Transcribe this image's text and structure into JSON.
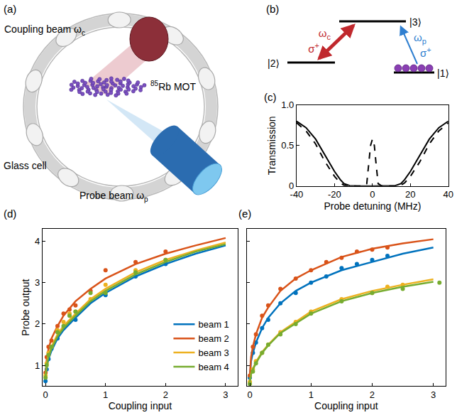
{
  "figure_a": {
    "label": "(a)",
    "coupling_beam": {
      "text": "Coupling beam ω",
      "sub": "c"
    },
    "mot": {
      "pre_sup": "85",
      "text": "Rb MOT"
    },
    "glass_cell": "Glass cell",
    "probe_beam": {
      "text": "Probe beam ω",
      "sub": "p"
    }
  },
  "figure_b": {
    "label": "(b)",
    "levels": [
      "|1⟩",
      "|2⟩",
      "|3⟩"
    ],
    "coupling": {
      "frequency": {
        "text": "ω",
        "sub": "c"
      },
      "polarization": {
        "text": "σ",
        "sup": "+"
      }
    },
    "probe": {
      "frequency": {
        "text": "ω",
        "sub": "p"
      },
      "polarization": {
        "text": "σ",
        "sup": "+"
      }
    }
  },
  "chart_data": [
    {
      "type": "line",
      "label": "(c)",
      "x_label": "Probe detuning (MHz)",
      "y_label": "Transmission",
      "xlim": [
        -40,
        40
      ],
      "ylim": [
        0,
        1
      ],
      "xticks": [
        -40,
        -20,
        0,
        20,
        40
      ],
      "yticks": [
        0,
        0.5,
        {
          "value": 1,
          "label": "1.0"
        }
      ],
      "grid": false,
      "series": [
        {
          "color": "#000000",
          "line_style": "solid",
          "x": [
            -40,
            -35,
            -30,
            -25,
            -20,
            -17,
            -15,
            -12,
            -8,
            0,
            8,
            12,
            15,
            17,
            20,
            25,
            30,
            35,
            40
          ],
          "values": [
            0.8,
            0.72,
            0.58,
            0.38,
            0.18,
            0.08,
            0.03,
            0.005,
            0,
            0,
            0,
            0.005,
            0.03,
            0.08,
            0.18,
            0.38,
            0.58,
            0.72,
            0.8
          ]
        },
        {
          "color": "#000000",
          "line_style": "dashed",
          "x": [
            -40,
            -35,
            -30,
            -25,
            -20,
            -17,
            -15,
            -12,
            -8,
            -5,
            -3,
            -2,
            -1,
            0,
            1,
            2,
            3,
            5,
            8,
            12,
            15,
            17,
            20,
            25,
            30,
            35,
            40
          ],
          "values": [
            0.78,
            0.68,
            0.52,
            0.3,
            0.12,
            0.04,
            0.01,
            0,
            0,
            0,
            0.03,
            0.25,
            0.5,
            0.58,
            0.5,
            0.25,
            0.03,
            0,
            0,
            0,
            0.01,
            0.04,
            0.12,
            0.3,
            0.52,
            0.68,
            0.78
          ]
        }
      ]
    },
    {
      "type": "scatter",
      "label": "(d)",
      "x_label": "Coupling input",
      "y_label": "Probe output",
      "xlim": [
        -0.05,
        3.2
      ],
      "ylim": [
        0.5,
        4.3
      ],
      "xticks": [
        0,
        1,
        2,
        3
      ],
      "yticks": [
        1,
        2,
        3,
        4
      ],
      "grid": false,
      "legend": "lower right",
      "marker": "circle",
      "series": [
        {
          "name": "beam 1",
          "color": "#0072BD",
          "x": [
            0,
            0.02,
            0.05,
            0.1,
            0.2,
            0.3,
            0.4,
            0.5,
            0.75,
            1.0,
            1.5,
            2.0
          ],
          "values": [
            0.62,
            0.9,
            1.15,
            1.4,
            1.65,
            1.9,
            2.05,
            2.1,
            2.55,
            2.7,
            3.15,
            3.45
          ],
          "fit": {
            "x": [
              0,
              0.02,
              0.05,
              0.1,
              0.2,
              0.3,
              0.5,
              0.75,
              1,
              1.5,
              2,
              2.5,
              3
            ],
            "values": [
              0.65,
              0.95,
              1.15,
              1.35,
              1.65,
              1.85,
              2.15,
              2.5,
              2.75,
              3.15,
              3.45,
              3.7,
              3.9
            ]
          }
        },
        {
          "name": "beam 2",
          "color": "#D95319",
          "x": [
            0,
            0.02,
            0.05,
            0.1,
            0.2,
            0.3,
            0.4,
            0.5,
            0.75,
            1.0,
            1.5,
            2.0
          ],
          "values": [
            0.82,
            1.2,
            1.45,
            1.6,
            1.95,
            2.25,
            2.35,
            2.45,
            2.8,
            3.3,
            3.5,
            3.75
          ],
          "fit": {
            "x": [
              0,
              0.02,
              0.05,
              0.1,
              0.2,
              0.3,
              0.5,
              0.75,
              1,
              1.5,
              2,
              2.5,
              3
            ],
            "values": [
              0.75,
              1.15,
              1.4,
              1.65,
              1.95,
              2.2,
              2.55,
              2.85,
              3.1,
              3.45,
              3.7,
              3.9,
              4.08
            ]
          }
        },
        {
          "name": "beam 3",
          "color": "#EDB120",
          "x": [
            0,
            0.02,
            0.05,
            0.1,
            0.2,
            0.3,
            0.4,
            0.5,
            0.75,
            1.0,
            1.5,
            2.0
          ],
          "values": [
            0.75,
            1.05,
            1.3,
            1.45,
            1.85,
            2.05,
            2.25,
            2.3,
            2.6,
            2.95,
            3.3,
            3.55
          ],
          "fit": {
            "x": [
              0,
              0.02,
              0.05,
              0.1,
              0.2,
              0.3,
              0.5,
              0.75,
              1,
              1.5,
              2,
              2.5,
              3
            ],
            "values": [
              0.7,
              1.05,
              1.25,
              1.45,
              1.75,
              1.95,
              2.25,
              2.6,
              2.85,
              3.25,
              3.55,
              3.78,
              3.97
            ]
          }
        },
        {
          "name": "beam 4",
          "color": "#77AC30",
          "x": [
            0,
            0.02,
            0.05,
            0.1,
            0.2,
            0.3,
            0.4,
            0.5,
            0.75,
            1.0,
            1.5,
            2.0
          ],
          "values": [
            0.7,
            1.0,
            1.25,
            1.45,
            1.8,
            1.95,
            2.2,
            2.3,
            2.75,
            2.75,
            3.25,
            3.55
          ],
          "fit": {
            "x": [
              0,
              0.02,
              0.05,
              0.1,
              0.2,
              0.3,
              0.5,
              0.75,
              1,
              1.5,
              2,
              2.5,
              3
            ],
            "values": [
              0.7,
              1.0,
              1.2,
              1.4,
              1.7,
              1.9,
              2.2,
              2.55,
              2.8,
              3.2,
              3.5,
              3.75,
              3.93
            ]
          }
        }
      ]
    },
    {
      "type": "scatter",
      "label": "(e)",
      "x_label": "Coupling input",
      "xlim": [
        -0.05,
        3.2
      ],
      "ylim": [
        0.5,
        4.3
      ],
      "xticks": [
        0,
        1,
        2,
        3
      ],
      "yticks": [
        1,
        2,
        3,
        4
      ],
      "grid": false,
      "tick_labels": "x",
      "marker": "circle",
      "series": [
        {
          "color": "#0072BD",
          "x": [
            0,
            0.05,
            0.1,
            0.2,
            0.3,
            0.5,
            0.75,
            1.0,
            1.25,
            1.5,
            1.75,
            2.0,
            2.25
          ],
          "values": [
            0.7,
            1.3,
            1.55,
            1.9,
            2.1,
            2.5,
            2.75,
            3.0,
            3.15,
            3.35,
            3.45,
            3.55,
            3.65
          ],
          "fit": {
            "x": [
              0,
              0.02,
              0.05,
              0.1,
              0.2,
              0.3,
              0.5,
              0.75,
              1,
              1.5,
              2,
              2.5,
              3
            ],
            "values": [
              0.7,
              1.1,
              1.3,
              1.55,
              1.9,
              2.15,
              2.5,
              2.8,
              3.0,
              3.3,
              3.5,
              3.7,
              3.85
            ]
          }
        },
        {
          "color": "#D95319",
          "x": [
            0,
            0.05,
            0.1,
            0.2,
            0.3,
            0.5,
            0.75,
            1.0,
            1.25,
            1.5,
            1.75,
            2.0,
            2.25
          ],
          "values": [
            0.75,
            1.45,
            1.75,
            2.2,
            2.45,
            2.85,
            3.1,
            3.3,
            3.5,
            3.6,
            3.75,
            3.8,
            3.85
          ],
          "fit": {
            "x": [
              0,
              0.02,
              0.05,
              0.1,
              0.2,
              0.3,
              0.5,
              0.75,
              1,
              1.5,
              2,
              2.5,
              3
            ],
            "values": [
              0.75,
              1.2,
              1.45,
              1.75,
              2.15,
              2.4,
              2.8,
              3.1,
              3.3,
              3.62,
              3.82,
              3.95,
              4.05
            ]
          }
        },
        {
          "color": "#EDB120",
          "x": [
            0,
            0.05,
            0.1,
            0.2,
            0.3,
            0.5,
            0.75,
            1.0,
            1.5,
            2.0,
            2.25,
            2.5
          ],
          "values": [
            0.6,
            0.9,
            1.1,
            1.3,
            1.5,
            1.8,
            2.05,
            2.3,
            2.6,
            2.75,
            2.9,
            2.95
          ],
          "fit": {
            "x": [
              0,
              0.02,
              0.05,
              0.1,
              0.2,
              0.3,
              0.5,
              0.75,
              1,
              1.5,
              2,
              2.5,
              3
            ],
            "values": [
              0.6,
              0.8,
              0.92,
              1.08,
              1.32,
              1.5,
              1.8,
              2.05,
              2.3,
              2.6,
              2.8,
              2.95,
              3.08
            ]
          }
        },
        {
          "color": "#77AC30",
          "x": [
            0,
            0.05,
            0.1,
            0.2,
            0.3,
            0.5,
            0.75,
            1.0,
            1.5,
            2.0,
            2.5,
            3.1
          ],
          "values": [
            0.55,
            0.85,
            1.05,
            1.3,
            1.5,
            1.75,
            2.0,
            2.25,
            2.55,
            2.75,
            2.85,
            3.0
          ],
          "fit": {
            "x": [
              0,
              0.02,
              0.05,
              0.1,
              0.2,
              0.3,
              0.5,
              0.75,
              1,
              1.5,
              2,
              2.5,
              3
            ],
            "values": [
              0.6,
              0.78,
              0.9,
              1.05,
              1.3,
              1.48,
              1.78,
              2.02,
              2.25,
              2.55,
              2.75,
              2.9,
              3.02
            ]
          }
        }
      ]
    }
  ]
}
